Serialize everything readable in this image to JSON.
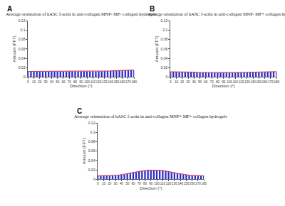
{
  "chart_data": [
    {
      "type": "bar",
      "title": "Average orientation of hASC f-actin in anti-collagen MNP- MF- collagen hydrogels",
      "annotations": [
        "A"
      ],
      "x_label": "Direction (°)",
      "y_label": "Amount (FFT)",
      "x": [
        0,
        5,
        10,
        15,
        20,
        25,
        30,
        35,
        40,
        45,
        50,
        55,
        60,
        65,
        70,
        75,
        80,
        85,
        90,
        95,
        100,
        105,
        110,
        115,
        120,
        125,
        130,
        135,
        140,
        145,
        150,
        155,
        160,
        165,
        170,
        175,
        180
      ],
      "series": [
        {
          "type": "bar",
          "color": "#2a2ad0",
          "values": [
            0.012,
            0.0118,
            0.0121,
            0.0119,
            0.012,
            0.0118,
            0.0119,
            0.012,
            0.0121,
            0.0119,
            0.0118,
            0.012,
            0.0119,
            0.0118,
            0.012,
            0.0119,
            0.0118,
            0.0119,
            0.012,
            0.0119,
            0.0118,
            0.012,
            0.0121,
            0.012,
            0.0122,
            0.0123,
            0.0125,
            0.0127,
            0.0129,
            0.0132,
            0.0135,
            0.0138,
            0.014,
            0.0142,
            0.0144,
            0.0146,
            0.0147
          ]
        },
        {
          "type": "line",
          "color": "#c8405a",
          "values": [
            0.0119,
            0.0119,
            0.0119,
            0.0119,
            0.0119,
            0.0119,
            0.0119,
            0.0119,
            0.0119,
            0.0119,
            0.0119,
            0.0119,
            0.0119,
            0.0119,
            0.0119,
            0.0119,
            0.0119,
            0.0119,
            0.0119,
            0.0119,
            0.0119,
            0.012,
            0.012,
            0.0121,
            0.0122,
            0.0123,
            0.0125,
            0.0127,
            0.0129,
            0.0131,
            0.0134,
            0.0137,
            0.0139,
            0.0142,
            0.0144,
            0.0146,
            0.0148
          ]
        }
      ],
      "xlim": [
        0,
        180
      ],
      "xticks": [
        0,
        10,
        20,
        30,
        40,
        50,
        60,
        70,
        80,
        90,
        100,
        110,
        120,
        130,
        140,
        150,
        160,
        170,
        180
      ],
      "ylim": [
        0,
        0.12
      ],
      "yticks": [
        0,
        0.02,
        0.04,
        0.06,
        0.08,
        0.1,
        0.12
      ],
      "grid": false
    },
    {
      "type": "bar",
      "title": "Average orientation of hASC f-actin in anti-collagen MNP- MF+ collagen hydrogels",
      "annotations": [
        "B"
      ],
      "x_label": "Direction (°)",
      "y_label": "Amount (FFT)",
      "x": [
        0,
        5,
        10,
        15,
        20,
        25,
        30,
        35,
        40,
        45,
        50,
        55,
        60,
        65,
        70,
        75,
        80,
        85,
        90,
        95,
        100,
        105,
        110,
        115,
        120,
        125,
        130,
        135,
        140,
        145,
        150,
        155,
        160,
        165,
        170,
        175,
        180
      ],
      "series": [
        {
          "type": "bar",
          "color": "#2a2ad0",
          "values": [
            0.0112,
            0.0111,
            0.011,
            0.0109,
            0.0108,
            0.0106,
            0.0105,
            0.0103,
            0.0101,
            0.01,
            0.0098,
            0.0096,
            0.0095,
            0.0094,
            0.0093,
            0.0092,
            0.0092,
            0.0091,
            0.0091,
            0.0092,
            0.0092,
            0.0093,
            0.0094,
            0.0095,
            0.0097,
            0.0098,
            0.01,
            0.0102,
            0.0103,
            0.0105,
            0.0106,
            0.0108,
            0.0109,
            0.011,
            0.0111,
            0.0112,
            0.0113
          ]
        },
        {
          "type": "line",
          "color": "#c8405a",
          "values": [
            0.0111,
            0.0111,
            0.011,
            0.0109,
            0.0108,
            0.0106,
            0.0104,
            0.0103,
            0.0101,
            0.0099,
            0.0098,
            0.0096,
            0.0095,
            0.0094,
            0.0093,
            0.0092,
            0.0091,
            0.0091,
            0.0091,
            0.0091,
            0.0092,
            0.0093,
            0.0094,
            0.0095,
            0.0096,
            0.0098,
            0.01,
            0.0101,
            0.0103,
            0.0105,
            0.0106,
            0.0107,
            0.0109,
            0.011,
            0.0111,
            0.0112,
            0.0112
          ]
        }
      ],
      "xlim": [
        0,
        180
      ],
      "xticks": [
        0,
        10,
        20,
        30,
        40,
        50,
        60,
        70,
        80,
        90,
        100,
        110,
        120,
        130,
        140,
        150,
        160,
        170,
        180
      ],
      "ylim": [
        0,
        0.12
      ],
      "yticks": [
        0,
        0.02,
        0.04,
        0.06,
        0.08,
        0.1,
        0.12
      ],
      "grid": false
    },
    {
      "type": "bar",
      "title": "Average orientation of hASC f-actin in anti-collagen MNP+ MF+ collagen hydrogels",
      "annotations": [
        "C"
      ],
      "x_label": "Direction (°)",
      "y_label": "Amount (FFT)",
      "x": [
        0,
        5,
        10,
        15,
        20,
        25,
        30,
        35,
        40,
        45,
        50,
        55,
        60,
        65,
        70,
        75,
        80,
        85,
        90,
        95,
        100,
        105,
        110,
        115,
        120,
        125,
        130,
        135,
        140,
        145,
        150,
        155,
        160,
        165,
        170,
        175,
        180
      ],
      "series": [
        {
          "type": "bar",
          "color": "#2a2ad0",
          "values": [
            0.0069,
            0.0068,
            0.0071,
            0.007,
            0.0074,
            0.0075,
            0.0081,
            0.0085,
            0.0095,
            0.0103,
            0.0116,
            0.0126,
            0.0141,
            0.0152,
            0.0166,
            0.0174,
            0.0184,
            0.0188,
            0.0193,
            0.0192,
            0.0193,
            0.0187,
            0.0183,
            0.0172,
            0.0163,
            0.0149,
            0.0138,
            0.0123,
            0.0113,
            0.01,
            0.0093,
            0.0084,
            0.008,
            0.0074,
            0.0073,
            0.0069,
            0.007
          ]
        },
        {
          "type": "line",
          "color": "#c8405a",
          "values": [
            0.0068,
            0.0069,
            0.007,
            0.0071,
            0.0073,
            0.0076,
            0.008,
            0.0086,
            0.0094,
            0.0104,
            0.0115,
            0.0127,
            0.014,
            0.0153,
            0.0165,
            0.0175,
            0.0183,
            0.0189,
            0.0192,
            0.0193,
            0.0192,
            0.0188,
            0.0182,
            0.0173,
            0.0162,
            0.015,
            0.0137,
            0.0124,
            0.0112,
            0.0101,
            0.0092,
            0.0085,
            0.0079,
            0.0075,
            0.0072,
            0.007,
            0.0069
          ]
        }
      ],
      "xlim": [
        0,
        180
      ],
      "xticks": [
        0,
        10,
        20,
        30,
        40,
        50,
        60,
        70,
        80,
        90,
        100,
        110,
        120,
        130,
        140,
        150,
        160,
        170,
        180
      ],
      "ylim": [
        0,
        0.12
      ],
      "yticks": [
        0,
        0.02,
        0.04,
        0.06,
        0.08,
        0.1,
        0.12
      ],
      "grid": false
    }
  ]
}
